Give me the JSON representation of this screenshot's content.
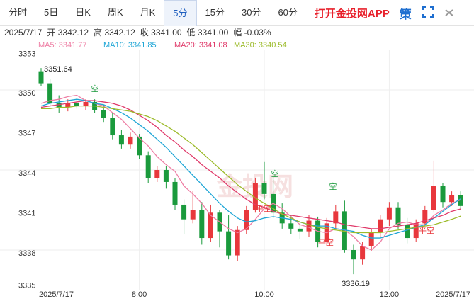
{
  "toolbar": {
    "tabs": [
      "分时",
      "5日",
      "日K",
      "周K",
      "月K",
      "5分",
      "15分",
      "30分",
      "60分"
    ],
    "app_link": "打开金投网APP",
    "strategy": "策"
  },
  "chart_data": {
    "type": "candlestick",
    "info": [
      "2025/7/17",
      "开 3342.12",
      "高 3342.12",
      "收 3341.00",
      "低 3341.00",
      "幅 -0.03%"
    ],
    "watermark": "金投网",
    "categories": [
      "2025/7/17",
      null,
      null,
      null,
      null,
      null,
      null,
      null,
      null,
      null,
      null,
      "8:00",
      null,
      null,
      null,
      null,
      null,
      null,
      null,
      null,
      null,
      null,
      null,
      null,
      null,
      "10:00",
      null,
      null,
      null,
      null,
      null,
      null,
      null,
      null,
      null,
      null,
      null,
      null,
      null,
      "12:00",
      null,
      null,
      null,
      null,
      null,
      null,
      null,
      "2025/7/17"
    ],
    "open": [
      3351.4,
      3350.5,
      3349.0,
      3348.7,
      3349.0,
      3348.8,
      3349.1,
      3348.5,
      3347.9,
      3346.6,
      3345.9,
      3346.5,
      3345.1,
      3343.4,
      3344.0,
      3343.1,
      3341.4,
      3340.3,
      3341.0,
      3338.9,
      3340.8,
      3339.4,
      3337.6,
      3339.5,
      3341.0,
      3343.0,
      3342.2,
      3340.8,
      3340.0,
      3339.6,
      3339.4,
      3340.2,
      3338.6,
      3340.0,
      3340.9,
      3338.0,
      3337.3,
      3338.3,
      3339.3,
      3340.3,
      3341.2,
      3339.9,
      3338.9,
      3340.0,
      3341.0,
      3342.8,
      3341.6,
      3342.1
    ],
    "high": [
      3351.64,
      3350.8,
      3349.6,
      3349.3,
      3349.4,
      3349.3,
      3349.3,
      3348.9,
      3348.3,
      3347.0,
      3346.8,
      3346.7,
      3345.4,
      3344.3,
      3344.3,
      3343.4,
      3341.8,
      3342.4,
      3341.6,
      3341.4,
      3341.0,
      3340.6,
      3339.8,
      3341.3,
      3343.4,
      3344.6,
      3343.8,
      3341.5,
      3340.6,
      3340.2,
      3340.6,
      3340.5,
      3340.4,
      3341.4,
      3341.7,
      3338.4,
      3338.6,
      3339.6,
      3340.6,
      3341.6,
      3341.6,
      3340.4,
      3340.3,
      3341.3,
      3344.7,
      3343.0,
      3342.4,
      3342.4
    ],
    "low": [
      3350.3,
      3348.8,
      3348.3,
      3348.4,
      3348.6,
      3348.5,
      3348.3,
      3347.6,
      3346.3,
      3345.6,
      3345.6,
      3344.8,
      3343.0,
      3343.1,
      3342.6,
      3341.0,
      3339.2,
      3340.0,
      3338.4,
      3338.6,
      3338.2,
      3337.3,
      3337.2,
      3339.2,
      3340.8,
      3341.8,
      3340.4,
      3339.6,
      3339.2,
      3338.8,
      3339.0,
      3338.2,
      3338.3,
      3339.6,
      3337.8,
      3336.19,
      3336.9,
      3337.9,
      3339.0,
      3339.8,
      3339.6,
      3338.5,
      3338.6,
      3339.8,
      3340.8,
      3341.2,
      3341.3,
      3341.0
    ],
    "close": [
      3350.5,
      3349.0,
      3348.7,
      3349.0,
      3348.8,
      3349.1,
      3348.5,
      3347.9,
      3346.6,
      3345.9,
      3346.5,
      3345.1,
      3343.4,
      3344.0,
      3343.1,
      3341.4,
      3340.3,
      3341.0,
      3338.9,
      3340.8,
      3339.4,
      3337.6,
      3339.5,
      3341.0,
      3343.0,
      3342.2,
      3340.8,
      3340.0,
      3339.6,
      3339.4,
      3340.2,
      3338.6,
      3340.0,
      3340.9,
      3338.0,
      3337.3,
      3338.3,
      3339.3,
      3340.3,
      3341.2,
      3339.9,
      3338.9,
      3340.0,
      3341.0,
      3342.8,
      3341.6,
      3342.1,
      3341.3
    ],
    "up_color": "#e8373c",
    "down_color": "#1a9a3c",
    "high_label": "3351.64",
    "low_label": "3336.19",
    "annotations": [
      "空",
      "空",
      "空",
      "平空",
      "平空",
      "平空"
    ],
    "series": [
      {
        "name": "MA5: 3341.77",
        "color": "#ee7ea4",
        "values": [
          3349.0,
          3349.2,
          3349.3,
          3349.5,
          3349.6,
          3349.2,
          3349.0,
          3348.8,
          3348.3,
          3347.8,
          3347.1,
          3346.4,
          3345.8,
          3345.0,
          3344.4,
          3343.9,
          3342.8,
          3342.2,
          3341.5,
          3340.6,
          3340.1,
          3339.6,
          3339.3,
          3339.6,
          3340.3,
          3341.1,
          3341.5,
          3341.1,
          3340.5,
          3339.9,
          3339.7,
          3339.4,
          3339.3,
          3339.6,
          3339.5,
          3339.0,
          3338.3,
          3338.0,
          3338.6,
          3339.6,
          3340.0,
          3340.1,
          3339.9,
          3339.9,
          3340.6,
          3341.0,
          3341.5,
          3341.77
        ]
      },
      {
        "name": "MA10: 3341.85",
        "color": "#1fa6d6",
        "values": [
          3348.8,
          3349.0,
          3349.1,
          3349.2,
          3349.3,
          3349.2,
          3349.0,
          3348.9,
          3348.6,
          3348.3,
          3347.9,
          3347.4,
          3346.9,
          3346.3,
          3345.7,
          3345.0,
          3344.3,
          3343.6,
          3342.9,
          3342.2,
          3341.5,
          3340.9,
          3340.4,
          3340.1,
          3340.2,
          3340.4,
          3340.5,
          3340.4,
          3340.3,
          3340.1,
          3339.9,
          3339.8,
          3339.8,
          3339.6,
          3339.5,
          3339.4,
          3339.1,
          3338.9,
          3338.9,
          3339.1,
          3339.3,
          3339.5,
          3339.7,
          3339.9,
          3340.4,
          3340.9,
          3341.4,
          3341.85
        ]
      },
      {
        "name": "MA20: 3341.08",
        "color": "#e03a6a",
        "values": [
          3348.7,
          3348.8,
          3348.9,
          3349.0,
          3349.1,
          3349.2,
          3349.2,
          3349.1,
          3349.0,
          3348.8,
          3348.5,
          3348.1,
          3347.7,
          3347.2,
          3346.6,
          3346.1,
          3345.5,
          3345.0,
          3344.4,
          3343.9,
          3343.4,
          3342.8,
          3342.3,
          3341.8,
          3341.4,
          3341.2,
          3340.9,
          3340.7,
          3340.6,
          3340.5,
          3340.4,
          3340.3,
          3340.2,
          3340.1,
          3339.9,
          3339.8,
          3339.7,
          3339.6,
          3339.6,
          3339.7,
          3339.8,
          3339.9,
          3340.0,
          3340.2,
          3340.4,
          3340.6,
          3340.9,
          3341.08
        ]
      },
      {
        "name": "MA30: 3340.54",
        "color": "#9cbb2a",
        "values": [
          3348.6,
          3348.6,
          3348.7,
          3348.7,
          3348.8,
          3348.8,
          3348.8,
          3348.7,
          3348.6,
          3348.5,
          3348.4,
          3348.2,
          3348.0,
          3347.7,
          3347.3,
          3346.9,
          3346.4,
          3345.9,
          3345.3,
          3344.7,
          3344.1,
          3343.5,
          3342.9,
          3342.4,
          3341.9,
          3341.5,
          3341.1,
          3340.7,
          3340.4,
          3340.1,
          3339.9,
          3339.7,
          3339.6,
          3339.5,
          3339.4,
          3339.3,
          3339.3,
          3339.3,
          3339.3,
          3339.4,
          3339.5,
          3339.6,
          3339.7,
          3339.8,
          3339.9,
          3340.1,
          3340.3,
          3340.54
        ]
      }
    ],
    "ylim": [
      3335,
      3353
    ],
    "yticks": [
      3335,
      3338,
      3341,
      3344,
      3347,
      3350,
      3353
    ],
    "grid": true
  }
}
